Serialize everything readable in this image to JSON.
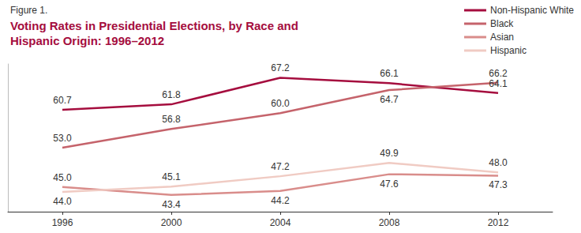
{
  "chart_data": {
    "type": "line",
    "subtitle": "Figure 1.",
    "title": "Voting Rates in Presidential Elections, by Race and Hispanic Origin: 1996–2012",
    "categories": [
      "1996",
      "2000",
      "2004",
      "2008",
      "2012"
    ],
    "series": [
      {
        "name": "Non-Hispanic White",
        "color": "#a50d3e",
        "values": [
          60.7,
          61.8,
          67.2,
          66.1,
          64.1
        ],
        "value_labels": [
          "60.7",
          "61.8",
          "67.2",
          "66.1",
          "64.1"
        ]
      },
      {
        "name": "Black",
        "color": "#c5636b",
        "values": [
          53.0,
          56.8,
          60.0,
          64.7,
          66.2
        ],
        "value_labels": [
          "53.0",
          "56.8",
          "60.0",
          "64.7",
          "66.2"
        ]
      },
      {
        "name": "Asian",
        "color": "#d98d8b",
        "values": [
          45.0,
          43.4,
          44.2,
          47.6,
          47.3
        ],
        "value_labels": [
          "45.0",
          "43.4",
          "44.2",
          "47.6",
          "47.3"
        ]
      },
      {
        "name": "Hispanic",
        "color": "#f0cbc3",
        "values": [
          44.0,
          45.1,
          47.2,
          49.9,
          48.0
        ],
        "value_labels": [
          "44.0",
          "45.1",
          "47.2",
          "49.9",
          "48.0"
        ]
      }
    ],
    "ylim": [
      40,
      70
    ],
    "grid": false,
    "legend": "top-right",
    "data_labels": true,
    "tick_labels": "x"
  }
}
